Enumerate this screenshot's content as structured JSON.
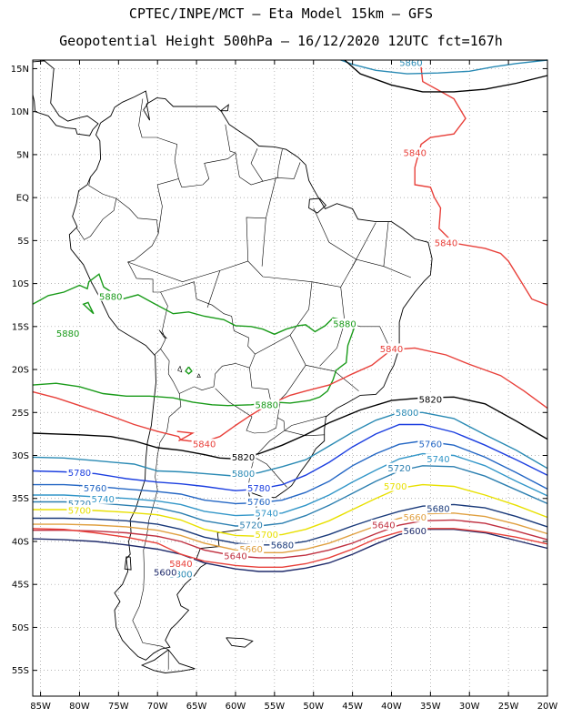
{
  "title_line1": "CPTEC/INPE/MCT — Eta Model 15km — GFS",
  "title_line2": "Geopotential Height 500hPa — 16/12/2020 12UTC fct=167h",
  "lat_ticks": [
    {
      "lat": 15,
      "label": "15N"
    },
    {
      "lat": 10,
      "label": "10N"
    },
    {
      "lat": 5,
      "label": "5N"
    },
    {
      "lat": 0,
      "label": "EQ"
    },
    {
      "lat": -5,
      "label": "5S"
    },
    {
      "lat": -10,
      "label": "10S"
    },
    {
      "lat": -15,
      "label": "15S"
    },
    {
      "lat": -20,
      "label": "20S"
    },
    {
      "lat": -25,
      "label": "25S"
    },
    {
      "lat": -30,
      "label": "30S"
    },
    {
      "lat": -35,
      "label": "35S"
    },
    {
      "lat": -40,
      "label": "40S"
    },
    {
      "lat": -45,
      "label": "45S"
    },
    {
      "lat": -50,
      "label": "50S"
    },
    {
      "lat": -55,
      "label": "55S"
    }
  ],
  "lon_ticks": [
    {
      "lon": -85,
      "label": "85W"
    },
    {
      "lon": -80,
      "label": "80W"
    },
    {
      "lon": -75,
      "label": "75W"
    },
    {
      "lon": -70,
      "label": "70W"
    },
    {
      "lon": -65,
      "label": "65W"
    },
    {
      "lon": -60,
      "label": "60W"
    },
    {
      "lon": -55,
      "label": "55W"
    },
    {
      "lon": -50,
      "label": "50W"
    },
    {
      "lon": -45,
      "label": "45W"
    },
    {
      "lon": -40,
      "label": "40W"
    },
    {
      "lon": -35,
      "label": "35W"
    },
    {
      "lon": -30,
      "label": "30W"
    },
    {
      "lon": -25,
      "label": "25W"
    },
    {
      "lon": -20,
      "label": "20W"
    }
  ],
  "map_extent": {
    "lon_min": -86,
    "lon_max": -20,
    "lat_min": -58,
    "lat_max": 16
  },
  "grid": true,
  "contours": [
    {
      "level": "5880",
      "color": "#1a9b1a",
      "labels": [
        {
          "lon": -76,
          "lat": -11.5
        },
        {
          "lon": -81.5,
          "lat": -15.8
        },
        {
          "lon": -46,
          "lat": -14.7
        },
        {
          "lon": -56,
          "lat": -24.1
        }
      ]
    },
    {
      "level": "5840",
      "color": "#e8403a",
      "labels": [
        {
          "lon": -37,
          "lat": 5.2
        },
        {
          "lon": -33,
          "lat": -5.3
        },
        {
          "lon": -40,
          "lat": -17.6
        },
        {
          "lon": -64,
          "lat": -28.7
        },
        {
          "lon": -67,
          "lat": -42.6
        }
      ]
    },
    {
      "level": "5820",
      "color": "#000000",
      "labels": [
        {
          "lon": -35,
          "lat": -23.5
        },
        {
          "lon": -59,
          "lat": -30.2
        }
      ]
    },
    {
      "level": "5800",
      "color": "#2a8ab4",
      "labels": [
        {
          "lon": -38,
          "lat": -25
        },
        {
          "lon": -59,
          "lat": -32.1
        },
        {
          "lon": -67,
          "lat": -43.8
        }
      ]
    },
    {
      "level": "5780",
      "color": "#1c3fe0",
      "labels": [
        {
          "lon": -80,
          "lat": -32
        },
        {
          "lon": -57,
          "lat": -33.8
        }
      ]
    },
    {
      "level": "5760",
      "color": "#2366c4",
      "labels": [
        {
          "lon": -35,
          "lat": -28.7
        },
        {
          "lon": -78,
          "lat": -33.8
        },
        {
          "lon": -57,
          "lat": -35.4
        }
      ]
    },
    {
      "level": "5740",
      "color": "#3296c8",
      "labels": [
        {
          "lon": -34,
          "lat": -30.4
        },
        {
          "lon": -77,
          "lat": -35.1
        },
        {
          "lon": -56,
          "lat": -36.7
        }
      ]
    },
    {
      "level": "5720",
      "color": "#2c7fb0",
      "labels": [
        {
          "lon": -39,
          "lat": -31.5
        },
        {
          "lon": -80,
          "lat": -35.6
        },
        {
          "lon": -58,
          "lat": -38.1
        }
      ]
    },
    {
      "level": "5700",
      "color": "#e8e000",
      "labels": [
        {
          "lon": -39.5,
          "lat": -33.6
        },
        {
          "lon": -80,
          "lat": -36.4
        },
        {
          "lon": -56,
          "lat": -39.2
        }
      ]
    },
    {
      "level": "5680",
      "color": "#1a3a7a",
      "labels": [
        {
          "lon": -34,
          "lat": -36.2
        },
        {
          "lon": -54,
          "lat": -40.4
        }
      ]
    },
    {
      "level": "5660",
      "color": "#e0a040",
      "labels": [
        {
          "lon": -37,
          "lat": -37.2
        },
        {
          "lon": -58,
          "lat": -40.9
        }
      ]
    },
    {
      "level": "5640",
      "color": "#c03040",
      "labels": [
        {
          "lon": -41,
          "lat": -38.1
        },
        {
          "lon": -60,
          "lat": -41.7
        }
      ]
    },
    {
      "level": "5600",
      "color": "#1e2a6a",
      "labels": [
        {
          "lon": -37,
          "lat": -38.8
        },
        {
          "lon": -69,
          "lat": -43.6
        }
      ]
    },
    {
      "level": "5860",
      "color": "#2a8ab4",
      "labels": [
        {
          "lon": -37.5,
          "lat": 15.7
        }
      ]
    }
  ]
}
